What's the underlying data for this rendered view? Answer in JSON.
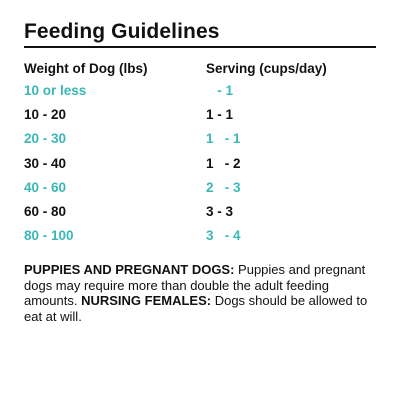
{
  "title": "Feeding Guidelines",
  "headers": {
    "weight": "Weight of Dog (lbs)",
    "serving": "Serving (cups/day)"
  },
  "colors": {
    "accent": "#3ab7b7",
    "text": "#111111"
  },
  "rows": [
    {
      "weight": "10 or less",
      "serving": "   - 1",
      "style": "teal"
    },
    {
      "weight": "10 - 20",
      "serving": "1 - 1",
      "style": "dark"
    },
    {
      "weight": "20 - 30",
      "serving": "1   - 1",
      "style": "teal"
    },
    {
      "weight": "30 - 40",
      "serving": "1   - 2",
      "style": "dark"
    },
    {
      "weight": "40 - 60",
      "serving": "2   - 3",
      "style": "teal"
    },
    {
      "weight": "60 - 80",
      "serving": "3 - 3",
      "style": "dark"
    },
    {
      "weight": "80 - 100",
      "serving": "3   - 4",
      "style": "teal"
    }
  ],
  "notes": {
    "puppies_label": "PUPPIES AND PREGNANT DOGS:",
    "puppies_text": " Puppies and pregnant dogs may require more than double the adult feeding amounts. ",
    "nursing_label": "NURSING FEMALES:",
    "nursing_text": " Dogs should be allowed to eat at will."
  }
}
